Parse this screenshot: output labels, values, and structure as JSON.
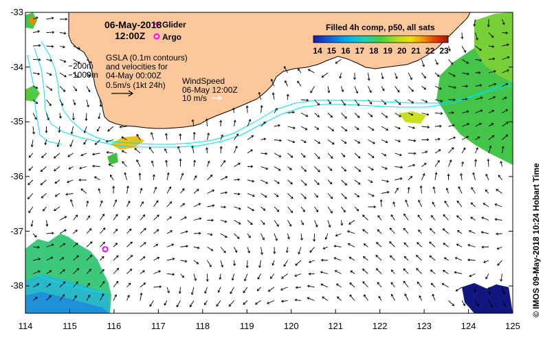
{
  "title": {
    "date": "06-May-2018",
    "time": "12:00Z"
  },
  "legend": {
    "glider_label": "Glider",
    "argo_label": "Argo",
    "glider_color": "#ff00ff",
    "argo_color": "#ff00ff"
  },
  "depth_labels": {
    "d200": "200m",
    "d1000": "1000m"
  },
  "gsla": {
    "line1": "GSLA (0.1m contours)",
    "line2": "and velocities for",
    "line3": "04-May 00:00Z",
    "line4": "0.5m/s (1kt 24h)"
  },
  "wind": {
    "line1": "WindSpeed",
    "line2": "06-May 12:00Z",
    "line3": "10 m/s"
  },
  "colorbar": {
    "title": "Filled 4h comp, p50, all sats",
    "ticks": [
      "14",
      "15",
      "16",
      "17",
      "18",
      "19",
      "20",
      "21",
      "22",
      "23"
    ],
    "min": 14,
    "max": 23
  },
  "axes": {
    "lon_ticks": [
      "114",
      "115",
      "116",
      "117",
      "118",
      "119",
      "120",
      "121",
      "122",
      "123",
      "124",
      "125"
    ],
    "lat_ticks": [
      "-33",
      "-34",
      "-35",
      "-36",
      "-37",
      "-38"
    ],
    "lon_range": [
      114,
      125
    ],
    "lat_range": [
      -38.5,
      -33
    ]
  },
  "argo_position": {
    "lon": 115.8,
    "lat": -37.33
  },
  "credit": "© IMOS 09-May-2018 10:24 Hobart Time",
  "colors": {
    "land": "#fcc89b",
    "coast": "#000000",
    "contour": "#00e0f0",
    "arrow": "#000000"
  }
}
